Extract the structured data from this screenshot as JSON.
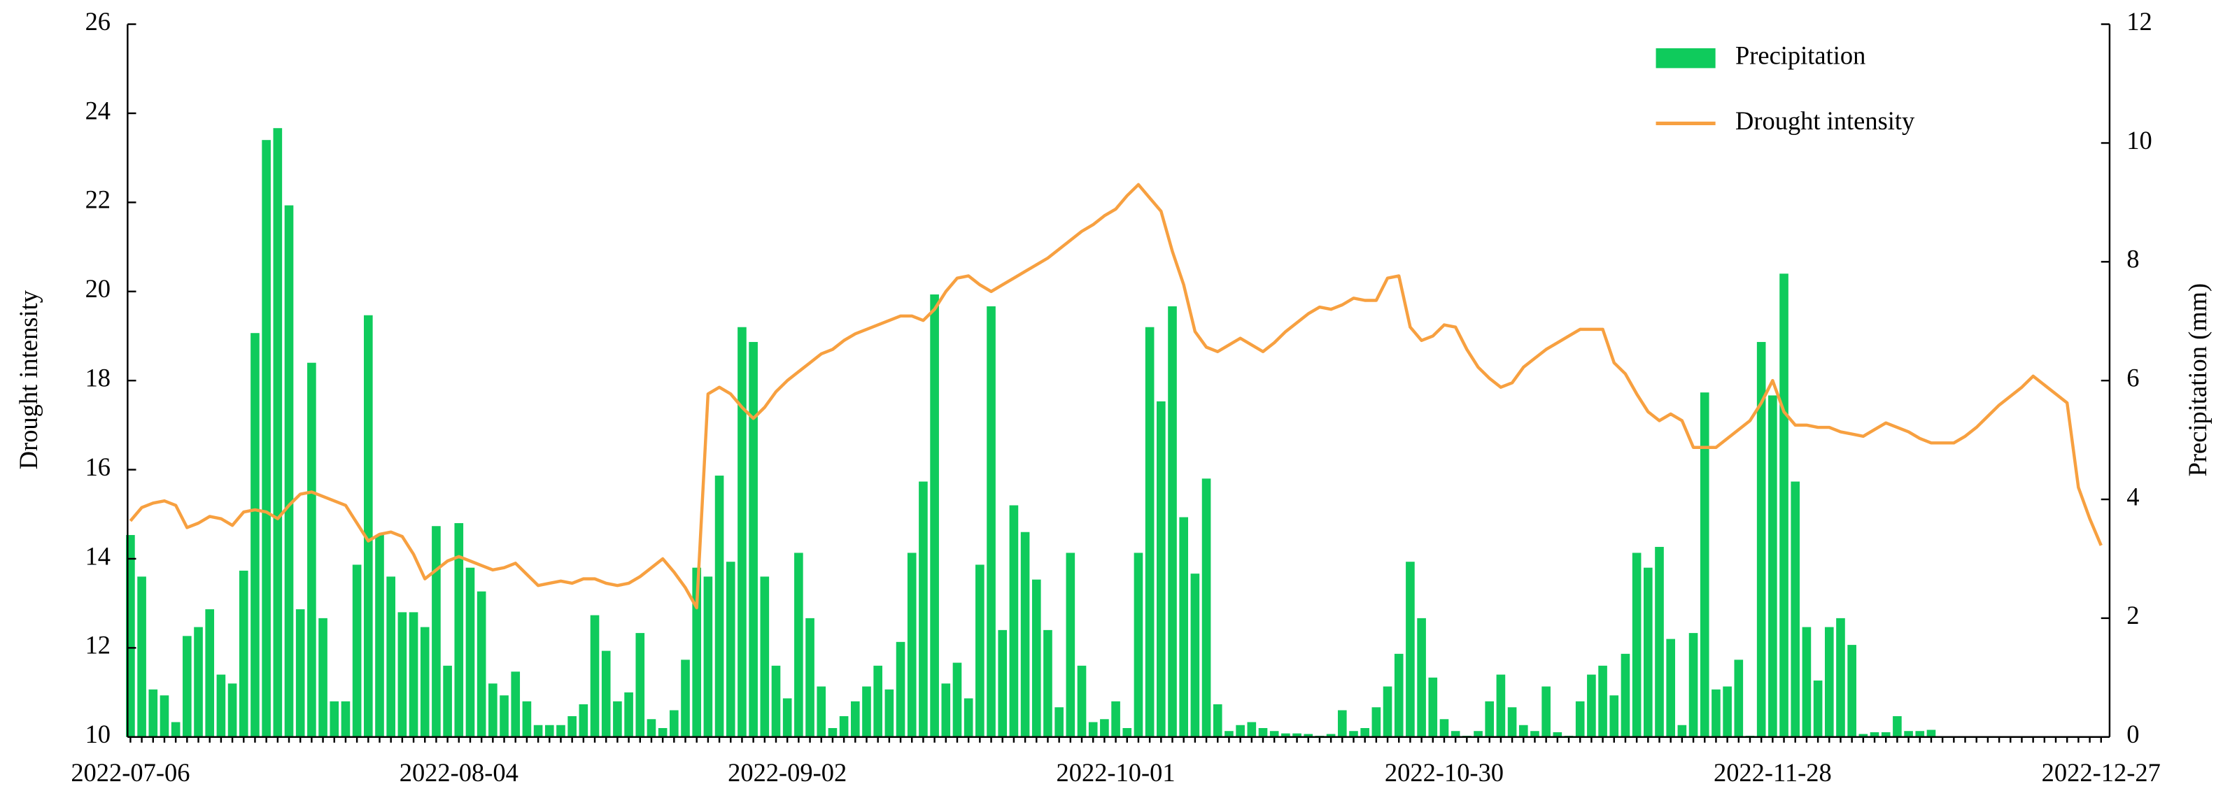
{
  "chart_data": {
    "type": "combo",
    "ylabel": "Drought intensity",
    "y2label": "Precipitation (mm)",
    "ylim": [
      10,
      26
    ],
    "yticks": [
      10,
      12,
      14,
      16,
      18,
      20,
      22,
      24,
      26
    ],
    "y2lim": [
      0,
      12
    ],
    "y2ticks": [
      0,
      2,
      4,
      6,
      8,
      10,
      12
    ],
    "legend": "upper right",
    "categories": [
      "2022-07-06",
      null,
      null,
      null,
      null,
      null,
      null,
      null,
      null,
      null,
      null,
      null,
      null,
      null,
      null,
      null,
      null,
      null,
      null,
      null,
      null,
      null,
      null,
      null,
      null,
      null,
      null,
      null,
      null,
      "2022-08-04",
      null,
      null,
      null,
      null,
      null,
      null,
      null,
      null,
      null,
      null,
      null,
      null,
      null,
      null,
      null,
      null,
      null,
      null,
      null,
      null,
      null,
      null,
      null,
      null,
      null,
      null,
      null,
      null,
      "2022-09-02",
      null,
      null,
      null,
      null,
      null,
      null,
      null,
      null,
      null,
      null,
      null,
      null,
      null,
      null,
      null,
      null,
      null,
      null,
      null,
      null,
      null,
      null,
      null,
      null,
      null,
      null,
      null,
      null,
      "2022-10-01",
      null,
      null,
      null,
      null,
      null,
      null,
      null,
      null,
      null,
      null,
      null,
      null,
      null,
      null,
      null,
      null,
      null,
      null,
      null,
      null,
      null,
      null,
      null,
      null,
      null,
      null,
      null,
      null,
      "2022-10-30",
      null,
      null,
      null,
      null,
      null,
      null,
      null,
      null,
      null,
      null,
      null,
      null,
      null,
      null,
      null,
      null,
      null,
      null,
      null,
      null,
      null,
      null,
      null,
      null,
      null,
      null,
      null,
      null,
      "2022-11-28",
      null,
      null,
      null,
      null,
      null,
      null,
      null,
      null,
      null,
      null,
      null,
      null,
      null,
      null,
      null,
      null,
      null,
      null,
      null,
      null,
      null,
      null,
      null,
      null,
      null,
      null,
      null,
      null,
      "2022-12-27"
    ],
    "series": [
      {
        "name": "Precipitation",
        "type": "bar",
        "axis": "y2",
        "color": "#0fcb5c",
        "values": [
          3.4,
          2.7,
          0.8,
          0.7,
          0.25,
          1.7,
          1.85,
          2.15,
          1.05,
          0.9,
          2.8,
          6.8,
          10.05,
          10.25,
          8.95,
          2.15,
          6.3,
          2.0,
          0.6,
          0.6,
          2.9,
          7.1,
          3.4,
          2.7,
          2.1,
          2.1,
          1.85,
          3.55,
          1.2,
          3.6,
          2.85,
          2.45,
          0.9,
          0.7,
          1.1,
          0.6,
          0.2,
          0.2,
          0.2,
          0.35,
          0.55,
          2.05,
          1.45,
          0.6,
          0.75,
          1.75,
          0.3,
          0.15,
          0.45,
          1.3,
          2.85,
          2.7,
          4.4,
          2.95,
          6.9,
          6.65,
          2.7,
          1.2,
          0.65,
          3.1,
          2.0,
          0.85,
          0.15,
          0.35,
          0.6,
          0.85,
          1.2,
          0.8,
          1.6,
          3.1,
          4.3,
          7.45,
          0.9,
          1.25,
          0.65,
          2.9,
          7.25,
          1.8,
          3.9,
          3.45,
          2.65,
          1.8,
          0.5,
          3.1,
          1.2,
          0.25,
          0.3,
          0.6,
          0.15,
          3.1,
          6.9,
          5.65,
          7.25,
          3.7,
          2.75,
          4.35,
          0.55,
          0.1,
          0.2,
          0.25,
          0.15,
          0.1,
          0.06,
          0.06,
          0.05,
          0.02,
          0.05,
          0.45,
          0.1,
          0.15,
          0.5,
          0.85,
          1.4,
          2.95,
          2.0,
          1.0,
          0.3,
          0.1,
          0.02,
          0.1,
          0.6,
          1.05,
          0.5,
          0.2,
          0.1,
          0.85,
          0.08,
          0.02,
          0.6,
          1.05,
          1.2,
          0.7,
          1.4,
          3.1,
          2.85,
          3.2,
          1.65,
          0.2,
          1.75,
          5.8,
          0.8,
          0.85,
          1.3,
          0.02,
          6.65,
          5.75,
          7.8,
          4.3,
          1.85,
          0.95,
          1.85,
          2.0,
          1.55,
          0.05,
          0.08,
          0.08,
          0.35,
          0.1,
          0.1,
          0.12,
          0,
          0,
          0,
          0,
          0,
          0,
          0,
          0,
          0,
          0,
          0,
          0,
          0,
          0,
          0
        ]
      },
      {
        "name": "Drought intensity",
        "type": "line",
        "color": "#f7a040",
        "values": [
          14.85,
          15.15,
          15.25,
          15.3,
          15.2,
          14.7,
          14.8,
          14.95,
          14.9,
          14.75,
          15.05,
          15.1,
          15.05,
          14.9,
          15.2,
          15.45,
          15.5,
          15.4,
          15.3,
          15.2,
          14.8,
          14.4,
          14.55,
          14.6,
          14.5,
          14.1,
          13.55,
          13.75,
          13.95,
          14.05,
          13.95,
          13.85,
          13.75,
          13.8,
          13.9,
          13.65,
          13.4,
          13.45,
          13.5,
          13.45,
          13.55,
          13.55,
          13.45,
          13.4,
          13.45,
          13.6,
          13.8,
          14.0,
          13.7,
          13.35,
          12.9,
          17.7,
          17.85,
          17.7,
          17.4,
          17.15,
          17.4,
          17.75,
          18.0,
          18.2,
          18.4,
          18.6,
          18.7,
          18.9,
          19.05,
          19.15,
          19.25,
          19.35,
          19.45,
          19.45,
          19.35,
          19.6,
          20.0,
          20.3,
          20.35,
          20.15,
          20.0,
          20.15,
          20.3,
          20.45,
          20.6,
          20.75,
          20.95,
          21.15,
          21.35,
          21.5,
          21.7,
          21.85,
          22.15,
          22.4,
          22.1,
          21.8,
          20.9,
          20.15,
          19.1,
          18.75,
          18.65,
          18.8,
          18.95,
          18.8,
          18.65,
          18.85,
          19.1,
          19.3,
          19.5,
          19.65,
          19.6,
          19.7,
          19.85,
          19.8,
          19.8,
          20.3,
          20.35,
          19.2,
          18.9,
          19.0,
          19.25,
          19.2,
          18.7,
          18.3,
          18.05,
          17.85,
          17.95,
          18.3,
          18.5,
          18.7,
          18.85,
          19.0,
          19.15,
          19.15,
          19.15,
          18.4,
          18.15,
          17.7,
          17.3,
          17.1,
          17.25,
          17.1,
          16.5,
          16.5,
          16.5,
          16.7,
          16.9,
          17.1,
          17.5,
          18.0,
          17.3,
          17.0,
          17.0,
          16.95,
          16.95,
          16.85,
          16.8,
          16.75,
          16.9,
          17.05,
          16.95,
          16.85,
          16.7,
          16.6,
          16.6,
          16.6,
          16.75,
          16.95,
          17.2,
          17.45,
          17.65,
          17.85,
          18.1,
          17.9,
          17.7,
          17.5,
          15.6,
          14.9,
          14.3
        ]
      }
    ]
  }
}
